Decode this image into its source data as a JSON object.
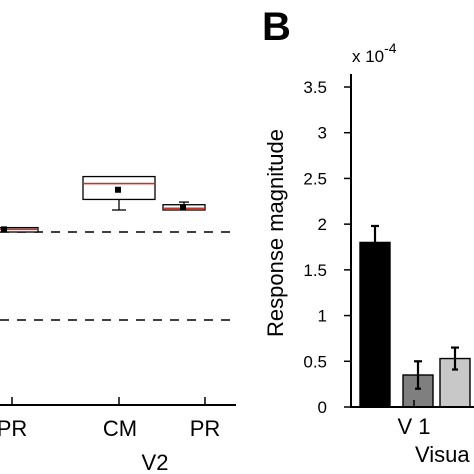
{
  "panel_label": "B",
  "chart_data": [
    {
      "type": "box",
      "group_label": "V2",
      "categories": [
        "PR",
        "CM",
        "PR"
      ],
      "reference_lines": [
        0.0,
        1.0
      ],
      "boxes": [
        {
          "category": "PR",
          "whisker_low": null,
          "q1": 1.0,
          "median": 1.03,
          "q3": 1.05,
          "whisker_high": null,
          "mean": 1.03
        },
        {
          "category": "CM",
          "whisker_low": 1.25,
          "q1": 1.37,
          "median": 1.55,
          "q3": 1.63,
          "whisker_high": null,
          "mean": 1.48
        },
        {
          "category": "PR",
          "whisker_low": null,
          "q1": 1.25,
          "median": 1.27,
          "q3": 1.31,
          "whisker_high": 1.34,
          "mean": 1.28
        }
      ],
      "colors": {
        "median": "#c0392b",
        "box": "#000000"
      }
    },
    {
      "type": "bar",
      "panel": "B",
      "ylabel": "Response magnitude",
      "y_scale_label": "x 10",
      "y_scale_exponent": "-4",
      "yticks": [
        "0",
        "0.5",
        "1",
        "1.5",
        "2",
        "2.5",
        "3",
        "3.5"
      ],
      "ylim": [
        0,
        3.7
      ],
      "xlabel": "Visua",
      "xtick_label": "V 1",
      "values": [
        1.8,
        0.35,
        0.53
      ],
      "errors": [
        0.18,
        0.15,
        0.12
      ],
      "colors": [
        "#000000",
        "#7f7f7f",
        "#c8c8c8"
      ]
    }
  ]
}
